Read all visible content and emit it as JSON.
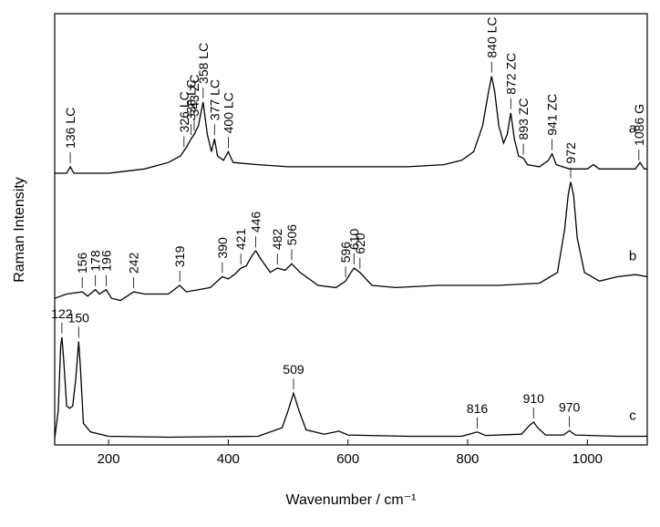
{
  "chart_data": {
    "type": "line",
    "xlabel": "Wavenumber / cm⁻¹",
    "ylabel": "Raman Intensity",
    "xlim": [
      110,
      1100
    ],
    "xticks": [
      200,
      400,
      600,
      800,
      1000
    ],
    "ylim": [
      0,
      100
    ],
    "series": [
      {
        "name": "a",
        "color": "#000000",
        "x": [
          110,
          130,
          136,
          142,
          200,
          260,
          300,
          320,
          330,
          338,
          343,
          350,
          358,
          365,
          372,
          377,
          382,
          392,
          400,
          408,
          450,
          500,
          600,
          700,
          760,
          790,
          810,
          825,
          835,
          840,
          845,
          852,
          860,
          866,
          872,
          878,
          885,
          893,
          900,
          920,
          935,
          941,
          948,
          970,
          1000,
          1010,
          1020,
          1080,
          1088,
          1095,
          1100
        ],
        "values": [
          63,
          63,
          64.5,
          63,
          63,
          64,
          65.5,
          67,
          69,
          71,
          72,
          74,
          79.5,
          72,
          68,
          71,
          67,
          66,
          68,
          65.5,
          65,
          64.5,
          64.5,
          64.5,
          65,
          66,
          68,
          74,
          82,
          85.5,
          82,
          74,
          70,
          72,
          77,
          71,
          67,
          66.5,
          65,
          64.5,
          66,
          67.5,
          65,
          64,
          64,
          65,
          64,
          64,
          65.5,
          64,
          64
        ],
        "annotations": [
          {
            "x": 136,
            "text": "136 LC"
          },
          {
            "x": 326,
            "text": "326 LC"
          },
          {
            "x": 338,
            "text": "338 LC"
          },
          {
            "x": 343,
            "text": "343 ZC"
          },
          {
            "x": 358,
            "text": "358 LC"
          },
          {
            "x": 377,
            "text": "377 LC"
          },
          {
            "x": 400,
            "text": "400 LC"
          },
          {
            "x": 840,
            "text": "840 LC"
          },
          {
            "x": 872,
            "text": "872 ZC"
          },
          {
            "x": 893,
            "text": "893 ZC"
          },
          {
            "x": 941,
            "text": "941 ZC"
          },
          {
            "x": 1086,
            "text": "1086 G"
          }
        ]
      },
      {
        "name": "b",
        "color": "#000000",
        "x": [
          110,
          130,
          156,
          165,
          178,
          185,
          196,
          205,
          220,
          242,
          260,
          300,
          319,
          330,
          370,
          390,
          400,
          410,
          421,
          430,
          440,
          446,
          455,
          470,
          482,
          495,
          506,
          520,
          550,
          580,
          596,
          605,
          610,
          620,
          640,
          680,
          750,
          850,
          920,
          950,
          962,
          968,
          972,
          977,
          983,
          995,
          1020,
          1050,
          1080,
          1100
        ],
        "values": [
          34,
          35,
          35.5,
          34.5,
          36,
          35,
          36,
          34,
          33.5,
          35.5,
          35,
          35,
          37,
          35.5,
          36.5,
          39,
          38.5,
          39.5,
          41,
          41.5,
          44,
          45,
          43,
          40,
          41,
          40.5,
          42,
          40,
          37,
          36.5,
          38,
          40,
          41,
          40,
          37,
          36.5,
          37,
          37,
          37.5,
          40,
          50,
          58,
          61,
          58,
          48,
          40,
          38,
          39,
          39.5,
          39
        ],
        "annotations": [
          {
            "x": 156,
            "text": "156"
          },
          {
            "x": 178,
            "text": "178"
          },
          {
            "x": 196,
            "text": "196"
          },
          {
            "x": 242,
            "text": "242"
          },
          {
            "x": 319,
            "text": "319"
          },
          {
            "x": 390,
            "text": "390"
          },
          {
            "x": 421,
            "text": "421"
          },
          {
            "x": 446,
            "text": "446"
          },
          {
            "x": 482,
            "text": "482"
          },
          {
            "x": 506,
            "text": "506"
          },
          {
            "x": 596,
            "text": "596"
          },
          {
            "x": 610,
            "text": "610"
          },
          {
            "x": 620,
            "text": "620"
          },
          {
            "x": 972,
            "text": "972"
          }
        ]
      },
      {
        "name": "c",
        "color": "#000000",
        "x": [
          110,
          116,
          120,
          122,
          125,
          130,
          135,
          140,
          145,
          150,
          153,
          158,
          170,
          200,
          300,
          450,
          490,
          500,
          509,
          518,
          530,
          560,
          585,
          600,
          700,
          790,
          816,
          830,
          890,
          903,
          910,
          917,
          930,
          960,
          970,
          980,
          1050,
          1100
        ],
        "values": [
          1.5,
          8,
          23,
          25,
          20,
          9,
          8.5,
          9,
          15,
          24,
          18,
          5,
          3,
          2,
          1.8,
          2,
          4,
          8,
          12,
          8,
          3.5,
          2.5,
          3.2,
          2.3,
          2,
          2,
          3,
          2.2,
          2.5,
          4.5,
          5.3,
          4,
          2.3,
          2.3,
          3.3,
          2.3,
          2,
          2
        ],
        "annotations": [
          {
            "x": 122,
            "text": "122"
          },
          {
            "x": 150,
            "text": "150"
          },
          {
            "x": 509,
            "text": "509"
          },
          {
            "x": 816,
            "text": "816"
          },
          {
            "x": 910,
            "text": "910"
          },
          {
            "x": 970,
            "text": "970"
          }
        ]
      }
    ]
  }
}
